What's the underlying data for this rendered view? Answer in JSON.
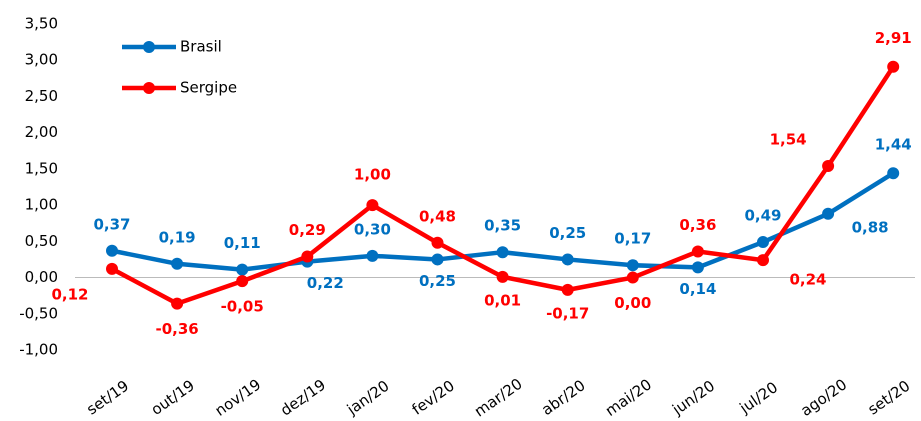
{
  "chart_data": {
    "type": "line",
    "categories": [
      "set/19",
      "out/19",
      "nov/19",
      "dez/19",
      "jan/20",
      "fev/20",
      "mar/20",
      "abr/20",
      "mai/20",
      "jun/20",
      "jul/20",
      "ago/20",
      "set/20"
    ],
    "series": [
      {
        "name": "Brasil",
        "color": "#0070c0",
        "values": [
          0.37,
          0.19,
          0.11,
          0.22,
          0.3,
          0.25,
          0.35,
          0.25,
          0.17,
          0.14,
          0.49,
          0.88,
          1.44
        ],
        "value_labels": [
          "0,37",
          "0,19",
          "0,11",
          "0,22",
          "0,30",
          "0,25",
          "0,35",
          "0,25",
          "0,17",
          "0,14",
          "0,49",
          "0,88",
          "1,44"
        ]
      },
      {
        "name": "Sergipe",
        "color": "#ff0000",
        "values": [
          0.12,
          -0.36,
          -0.05,
          0.29,
          1.0,
          0.48,
          0.01,
          -0.17,
          0.0,
          0.36,
          0.24,
          1.54,
          2.91
        ],
        "value_labels": [
          "0,12",
          "-0,36",
          "-0,05",
          "0,29",
          "1,00",
          "0,48",
          "0,01",
          "-0,17",
          "0,00",
          "0,36",
          "0,24",
          "1,54",
          "2,91"
        ]
      }
    ],
    "ylim": [
      -1.0,
      3.5
    ],
    "yticks": [
      {
        "value": -1.0,
        "label": "-1,00"
      },
      {
        "value": -0.5,
        "label": "-0,50"
      },
      {
        "value": 0.0,
        "label": "0,00"
      },
      {
        "value": 0.5,
        "label": "0,50"
      },
      {
        "value": 1.0,
        "label": "1,00"
      },
      {
        "value": 1.5,
        "label": "1,50"
      },
      {
        "value": 2.0,
        "label": "2,00"
      },
      {
        "value": 2.5,
        "label": "2,50"
      },
      {
        "value": 3.0,
        "label": "3,00"
      },
      {
        "value": 3.5,
        "label": "3,50"
      }
    ],
    "grid": false,
    "legend": "upper left"
  }
}
